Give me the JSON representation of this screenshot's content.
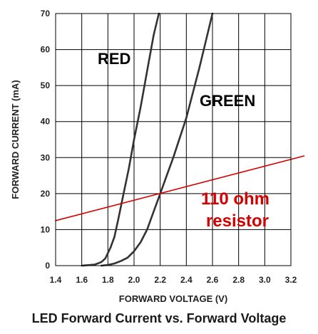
{
  "caption": "LED Forward Current vs. Forward Voltage",
  "chart_data": {
    "type": "line",
    "title": "LED Forward Current vs. Forward Voltage",
    "xlabel": "FORWARD VOLTAGE (V)",
    "ylabel": "FORWARD CURRENT (mA)",
    "xlim": [
      1.4,
      3.2
    ],
    "ylim": [
      0,
      70
    ],
    "xticks": [
      "1.4",
      "1.6",
      "1.8",
      "2.0",
      "2.2",
      "2.4",
      "2.6",
      "2.8",
      "3.0",
      "3.2"
    ],
    "yticks": [
      "0",
      "10",
      "20",
      "30",
      "40",
      "50",
      "60",
      "70"
    ],
    "grid": true,
    "series": [
      {
        "name": "RED",
        "color": "#333333",
        "x": [
          1.6,
          1.7,
          1.75,
          1.78,
          1.82,
          1.85,
          1.88,
          1.92,
          1.96,
          2.0,
          2.05,
          2.1,
          2.15,
          2.19
        ],
        "y": [
          0,
          0.3,
          1,
          2,
          5,
          8,
          13,
          20,
          27,
          35,
          44,
          54,
          64,
          70
        ]
      },
      {
        "name": "GREEN",
        "color": "#333333",
        "x": [
          1.75,
          1.8,
          1.85,
          1.9,
          1.95,
          2.0,
          2.05,
          2.1,
          2.15,
          2.2,
          2.25,
          2.3,
          2.4,
          2.5,
          2.6
        ],
        "y": [
          0,
          0.2,
          0.6,
          1.3,
          2.2,
          4,
          6.5,
          10,
          15,
          20,
          25,
          30,
          41,
          55,
          70
        ]
      },
      {
        "name": "110 ohm resistor",
        "color": "#d40000",
        "x": [
          1.4,
          3.2
        ],
        "y": [
          12.5,
          29.5
        ]
      }
    ],
    "labels": [
      "RED",
      "GREEN"
    ],
    "annotation": [
      "110 ohm",
      "resistor"
    ]
  }
}
